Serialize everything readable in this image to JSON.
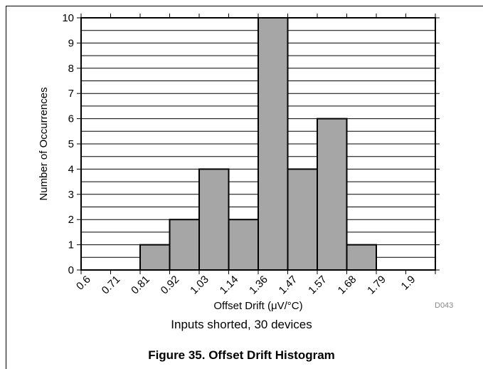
{
  "chart_data": {
    "type": "bar",
    "categories": [
      "0.6",
      "0.71",
      "0.81",
      "0.92",
      "1.03",
      "1.14",
      "1.36",
      "1.47",
      "1.57",
      "1.68",
      "1.79",
      "1.9"
    ],
    "values": [
      0,
      0,
      1,
      2,
      4,
      2,
      10,
      4,
      6,
      1,
      0,
      0
    ],
    "xlabel": "Offset Drift (μV/°C)",
    "ylabel": "Number of Occurrences",
    "ylim": [
      0,
      10
    ],
    "yticks": [
      0,
      1,
      2,
      3,
      4,
      5,
      6,
      7,
      8,
      9,
      10
    ],
    "grid": true,
    "bar_color": "#a6a6a6"
  },
  "subtitle": "Inputs shorted, 30 devices",
  "figure_caption": "Figure 35. Offset Drift Histogram",
  "figure_code": "D043"
}
